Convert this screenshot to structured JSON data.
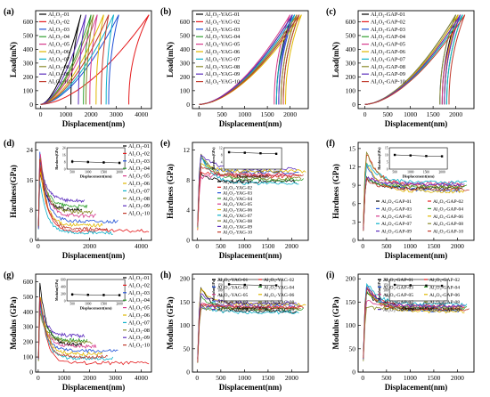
{
  "figure": {
    "colors": [
      "#000000",
      "#e41a1c",
      "#1f4fd6",
      "#2e9e2e",
      "#d63b8c",
      "#e0b800",
      "#0ab0c8",
      "#8a8a2a",
      "#5b2dbd",
      "#c0392b"
    ]
  },
  "chart_data": [
    {
      "type": "line",
      "panel_label": "(a)",
      "xlabel": "Displacement(nm)",
      "ylabel": "Load(mN)",
      "xlim": [
        -200,
        4400
      ],
      "ylim": [
        -30,
        680
      ],
      "xticks": [
        0,
        1000,
        2000,
        3000,
        4000
      ],
      "yticks": [
        0,
        100,
        200,
        300,
        400,
        500,
        600
      ],
      "legend_position": "top-left",
      "series": [
        {
          "name": "Al2O3-01",
          "label": "Al₂O₃-01",
          "load_max_x": 1600,
          "unload_end_x": 1200
        },
        {
          "name": "Al2O3-02",
          "label": "Al₂O₃-02",
          "load_max_x": 4300,
          "unload_end_x": 3500
        },
        {
          "name": "Al2O3-03",
          "label": "Al₂O₃-03",
          "load_max_x": 3100,
          "unload_end_x": 2700
        },
        {
          "name": "Al2O3-04",
          "label": "Al₂O₃-04",
          "load_max_x": 2000,
          "unload_end_x": 1700
        },
        {
          "name": "Al2O3-05",
          "label": "Al₂O₃-05",
          "load_max_x": 2250,
          "unload_end_x": 1950
        },
        {
          "name": "Al2O3-06",
          "label": "Al₂O₃-06",
          "load_max_x": 2500,
          "unload_end_x": 2200
        },
        {
          "name": "Al2O3-07",
          "label": "Al₂O₃-07",
          "load_max_x": 2900,
          "unload_end_x": 2600
        },
        {
          "name": "Al2O3-08",
          "label": "Al₂O₃-08",
          "load_max_x": 2100,
          "unload_end_x": 1800
        },
        {
          "name": "Al2O3-09",
          "label": "Al₂O₃-09",
          "load_max_x": 1800,
          "unload_end_x": 1500
        },
        {
          "name": "Al2O3-10",
          "label": "Al₂O₃-10",
          "load_max_x": 2700,
          "unload_end_x": 2400
        }
      ],
      "max_load": 650
    },
    {
      "type": "line",
      "panel_label": "(b)",
      "xlabel": "Displacement(nm)",
      "ylabel": "Load(mN)",
      "xlim": [
        -150,
        2400
      ],
      "ylim": [
        -30,
        680
      ],
      "xticks": [
        0,
        500,
        1000,
        1500,
        2000
      ],
      "yticks": [
        0,
        100,
        200,
        300,
        400,
        500,
        600
      ],
      "legend_position": "top-left",
      "series": [
        {
          "name": "Al2O3-YAG-01",
          "label": "Al₂O₃-YAG-01",
          "load_max_x": 2050,
          "unload_end_x": 1700
        },
        {
          "name": "Al2O3-YAG-02",
          "label": "Al₂O₃-YAG-02",
          "load_max_x": 2150,
          "unload_end_x": 1800
        },
        {
          "name": "Al2O3-YAG-03",
          "label": "Al₂O₃-YAG-03",
          "load_max_x": 2100,
          "unload_end_x": 1750
        },
        {
          "name": "Al2O3-YAG-04",
          "label": "Al₂O₃-YAG-04",
          "load_max_x": 2200,
          "unload_end_x": 1850
        },
        {
          "name": "Al2O3-YAG-05",
          "label": "Al₂O₃-YAG-05",
          "load_max_x": 2000,
          "unload_end_x": 1650
        },
        {
          "name": "Al2O3-YAG-06",
          "label": "Al₂O₃-YAG-06",
          "load_max_x": 2250,
          "unload_end_x": 1900
        },
        {
          "name": "Al2O3-YAG-07",
          "label": "Al₂O₃-YAG-07",
          "load_max_x": 2100,
          "unload_end_x": 1700
        },
        {
          "name": "Al2O3-YAG-08",
          "label": "Al₂O₃-YAG-08",
          "load_max_x": 2150,
          "unload_end_x": 1800
        },
        {
          "name": "Al2O3-YAG-09",
          "label": "Al₂O₃-YAG-09",
          "load_max_x": 2050,
          "unload_end_x": 1750
        },
        {
          "name": "Al2O3-YAG-10",
          "label": "Al₂O₃-YAG-10",
          "load_max_x": 2200,
          "unload_end_x": 1850
        }
      ],
      "max_load": 650
    },
    {
      "type": "line",
      "panel_label": "(c)",
      "xlabel": "Displacement(nm)",
      "ylabel": "Load(mN)",
      "xlim": [
        -150,
        2400
      ],
      "ylim": [
        -30,
        680
      ],
      "xticks": [
        0,
        500,
        1000,
        1500,
        2000
      ],
      "yticks": [
        0,
        100,
        200,
        300,
        400,
        500,
        600
      ],
      "legend_position": "top-left",
      "series": [
        {
          "name": "Al2O3-GAP-01",
          "label": "Al₂O₃-GAP-01",
          "load_max_x": 2050,
          "unload_end_x": 1700
        },
        {
          "name": "Al2O3-GAP-02",
          "label": "Al₂O₃-GAP-02",
          "load_max_x": 2100,
          "unload_end_x": 1750
        },
        {
          "name": "Al2O3-GAP-03",
          "label": "Al₂O₃-GAP-03",
          "load_max_x": 2000,
          "unload_end_x": 1650
        },
        {
          "name": "Al2O3-GAP-04",
          "label": "Al₂O₃-GAP-04",
          "load_max_x": 2150,
          "unload_end_x": 1800
        },
        {
          "name": "Al2O3-GAP-05",
          "label": "Al₂O₃-GAP-05",
          "load_max_x": 2100,
          "unload_end_x": 1700
        },
        {
          "name": "Al2O3-GAP-06",
          "label": "Al₂O₃-GAP-06",
          "load_max_x": 2050,
          "unload_end_x": 1750
        },
        {
          "name": "Al2O3-GAP-07",
          "label": "Al₂O₃-GAP-07",
          "load_max_x": 2150,
          "unload_end_x": 1800
        },
        {
          "name": "Al2O3-GAP-08",
          "label": "Al₂O₃-GAP-08",
          "load_max_x": 2000,
          "unload_end_x": 1650
        },
        {
          "name": "Al2O3-GAP-09",
          "label": "Al₂O₃-GAP-09",
          "load_max_x": 2100,
          "unload_end_x": 1750
        },
        {
          "name": "Al2O3-GAP-10",
          "label": "Al₂O₃-GAP-10",
          "load_max_x": 2200,
          "unload_end_x": 1850
        }
      ],
      "max_load": 650
    },
    {
      "type": "line",
      "panel_label": "(d)",
      "xlabel": "Displacement(nm)",
      "ylabel": "Hardness(GPa)",
      "xlim": [
        -100,
        4400
      ],
      "ylim": [
        0,
        26
      ],
      "xticks": [
        0,
        2000,
        4000
      ],
      "yticks": [
        0,
        8,
        16,
        24
      ],
      "legend_position": "right",
      "legend_layout": "1col",
      "series_labels": [
        "Al₂O₃-01",
        "Al₂O₃-02",
        "Al₂O₃-03",
        "Al₂O₃-04",
        "Al₂O₃-05",
        "Al₂O₃-06",
        "Al₂O₃-07",
        "Al₂O₃-08",
        "Al₂O₃-09",
        "Al₂O₃-10"
      ],
      "series_end_x": [
        1700,
        4300,
        3100,
        1900,
        2250,
        2500,
        2900,
        2100,
        1800,
        2700
      ],
      "series_plateau": [
        8.0,
        2.5,
        5.0,
        9.0,
        6.5,
        4.0,
        2.0,
        7.5,
        10.5,
        3.0
      ],
      "inset": {
        "ylabel": "Hardness(GPa)",
        "xlabel": "Displacement(nm)",
        "ylim": [
          0,
          24
        ],
        "yticks": [
          0,
          8,
          16,
          24
        ],
        "xticks": [
          500,
          1000,
          1500,
          2000
        ],
        "points": [
          [
            500,
            8.5
          ],
          [
            1000,
            8.0
          ],
          [
            1500,
            7.5
          ],
          [
            2000,
            7.0
          ]
        ],
        "errors": [
          2.0,
          1.5,
          1.5,
          1.5
        ]
      }
    },
    {
      "type": "line",
      "panel_label": "(e)",
      "xlabel": "Displacement(nm)",
      "ylabel": "Hardness (GPa)",
      "xlim": [
        -100,
        2350
      ],
      "ylim": [
        0,
        13
      ],
      "xticks": [
        0,
        500,
        1000,
        1500,
        2000
      ],
      "yticks": [
        0,
        4,
        8,
        12
      ],
      "legend_position": "left",
      "legend_layout": "1col",
      "series_labels": [
        "Al₂O₃-YAG-01",
        "Al₂O₃-YAG-02",
        "Al₂O₃-YAG-03",
        "Al₂O₃-YAG-04",
        "Al₂O₃-YAG-05",
        "Al₂O₃-YAG-06",
        "Al₂O₃-YAG-07",
        "Al₂O₃-YAG-08",
        "Al₂O₃-YAG-09",
        "Al₂O₃-YAG-10"
      ],
      "series_end_x": [
        2100,
        2200,
        2150,
        2250,
        2050,
        2300,
        2150,
        2200,
        2100,
        2250
      ],
      "series_plateau": [
        7.8,
        8.5,
        9.0,
        8.0,
        8.8,
        9.2,
        7.5,
        8.2,
        9.5,
        8.6
      ],
      "inset": {
        "ylabel": "Hardness(GPa)",
        "xlabel": "Displacement(nm)",
        "ylim": [
          0,
          12
        ],
        "yticks": [
          0,
          4,
          8,
          12
        ],
        "xticks": [
          500,
          1000,
          1500,
          2000
        ],
        "points": [
          [
            500,
            9.5
          ],
          [
            1000,
            9.2
          ],
          [
            1500,
            8.9
          ],
          [
            2000,
            8.6
          ]
        ],
        "errors": [
          0.6,
          0.5,
          0.5,
          0.5
        ]
      }
    },
    {
      "type": "line",
      "panel_label": "(f)",
      "xlabel": "Displacement(nm)",
      "ylabel": "Hardness (GPa)",
      "xlim": [
        -100,
        2350
      ],
      "ylim": [
        0,
        16
      ],
      "xticks": [
        0,
        500,
        1000,
        1500,
        2000
      ],
      "yticks": [
        0,
        3,
        6,
        9,
        12,
        15
      ],
      "legend_position": "bottom",
      "legend_layout": "2col",
      "series_labels": [
        "Al₂O₃-GAP-01",
        "Al₂O₃-GAP-02",
        "Al₂O₃-GAP-03",
        "Al₂O₃-GAP-04",
        "Al₂O₃-GAP-05",
        "Al₂O₃-GAP-06",
        "Al₂O₃-GAP-07",
        "Al₂O₃-GAP-08",
        "Al₂O₃-GAP-09",
        "Al₂O₃-GAP-10"
      ],
      "series_end_x": [
        2100,
        2150,
        2050,
        2200,
        2100,
        2150,
        2200,
        2050,
        2150,
        2250
      ],
      "series_plateau": [
        8.5,
        9.0,
        8.2,
        8.8,
        9.3,
        8.0,
        9.5,
        8.7,
        9.1,
        8.4
      ],
      "inset": {
        "ylabel": "Hardness(GPa)",
        "xlabel": "Displacement(nm)",
        "ylim": [
          0,
          15
        ],
        "yticks": [
          0,
          5,
          10,
          15
        ],
        "xticks": [
          500,
          1000,
          1500,
          2000
        ],
        "points": [
          [
            500,
            10.0
          ],
          [
            1000,
            9.6
          ],
          [
            1500,
            9.2
          ],
          [
            2000,
            9.0
          ]
        ],
        "errors": [
          0.5,
          0.4,
          0.4,
          0.4
        ]
      }
    },
    {
      "type": "line",
      "panel_label": "(g)",
      "xlabel": "Displacement(nm)",
      "ylabel": "Modulus (GPa)",
      "xlim": [
        -100,
        4400
      ],
      "ylim": [
        0,
        650
      ],
      "xticks": [
        0,
        1000,
        2000,
        3000,
        4000
      ],
      "yticks": [
        0,
        100,
        200,
        300,
        400,
        500,
        600
      ],
      "legend_position": "right",
      "legend_layout": "1col",
      "series_labels": [
        "Al₂O₃-01",
        "Al₂O₃-02",
        "Al₂O₃-03",
        "Al₂O₃-04",
        "Al₂O₃-05",
        "Al₂O₃-06",
        "Al₂O₃-07",
        "Al₂O₃-08",
        "Al₂O₃-09",
        "Al₂O₃-10"
      ],
      "series_end_x": [
        1700,
        4300,
        3100,
        1900,
        2250,
        2500,
        2900,
        2100,
        1800,
        2700
      ],
      "series_plateau": [
        180,
        60,
        140,
        210,
        170,
        120,
        90,
        200,
        240,
        100
      ],
      "inset": {
        "ylabel": "Modulus(GPa)",
        "xlabel": "Displacement(nm)",
        "ylim": [
          0,
          600
        ],
        "yticks": [
          0,
          200,
          400,
          600
        ],
        "xticks": [
          500,
          1000,
          1500,
          2000
        ],
        "points": [
          [
            500,
            180
          ],
          [
            1000,
            170
          ],
          [
            1500,
            165
          ],
          [
            2000,
            160
          ]
        ],
        "errors": [
          40,
          35,
          35,
          35
        ]
      }
    },
    {
      "type": "line",
      "panel_label": "(h)",
      "xlabel": "Displacement(nm)",
      "ylabel": "Modulus (GPa)",
      "xlim": [
        -100,
        2350
      ],
      "ylim": [
        0,
        210
      ],
      "xticks": [
        0,
        500,
        1000,
        1500,
        2000
      ],
      "yticks": [
        0,
        50,
        100,
        150,
        200
      ],
      "legend_position": "top",
      "legend_layout": "2col",
      "series_labels": [
        "Al₂O₃-YAG-01",
        "Al₂O₃-YAG-02",
        "Al₂O₃-YAG-03",
        "Al₂O₃-YAG-04",
        "Al₂O₃-YAG-05",
        "Al₂O₃-YAG-06",
        "Al₂O₃-YAG-07",
        "Al₂O₃-YAG-08",
        "Al₂O₃-YAG-09",
        "Al₂O₃-YAG-10"
      ],
      "series_end_x": [
        2100,
        2200,
        2150,
        2250,
        2050,
        2300,
        2150,
        2200,
        2100,
        2250
      ],
      "series_plateau": [
        130,
        138,
        142,
        135,
        140,
        145,
        128,
        136,
        148,
        139
      ],
      "inset": {
        "ylabel": "Modulus(GPa)",
        "xlabel": "Displacement(nm)",
        "ylim": [
          0,
          200
        ],
        "yticks": [
          0,
          50,
          100,
          150,
          200
        ],
        "xticks": [
          500,
          1000,
          1500,
          2000
        ],
        "points": [
          [
            500,
            155
          ],
          [
            1000,
            150
          ],
          [
            1500,
            147
          ],
          [
            2000,
            145
          ]
        ],
        "errors": [
          6,
          5,
          5,
          5
        ]
      }
    },
    {
      "type": "line",
      "panel_label": "(i)",
      "xlabel": "Displacement(nm)",
      "ylabel": "Modulus (GPa)",
      "xlim": [
        -100,
        2350
      ],
      "ylim": [
        0,
        210
      ],
      "xticks": [
        0,
        500,
        1000,
        1500,
        2000
      ],
      "yticks": [
        0,
        50,
        100,
        150,
        200
      ],
      "legend_position": "top",
      "legend_layout": "2col",
      "series_labels": [
        "Al₂O₃-GAP-01",
        "Al₂O₃-GAP-02",
        "Al₂O₃-GAP-03",
        "Al₂O₃-GAP-04",
        "Al₂O₃-GAP-05",
        "Al₂O₃-GAP-06",
        "Al₂O₃-GAP-07",
        "Al₂O₃-GAP-08",
        "Al₂O₃-GAP-09",
        "Al₂O₃-GAP-10"
      ],
      "series_end_x": [
        2100,
        2150,
        2050,
        2200,
        2100,
        2150,
        2200,
        2050,
        2150,
        2250
      ],
      "series_plateau": [
        135,
        140,
        132,
        138,
        142,
        130,
        145,
        137,
        141,
        134
      ],
      "inset": {
        "ylabel": "Modulus(GPa)",
        "xlabel": "Displacement(nm)",
        "ylim": [
          0,
          200
        ],
        "yticks": [
          0,
          50,
          100,
          150,
          200
        ],
        "xticks": [
          500,
          1000,
          1500,
          2000
        ],
        "points": [
          [
            500,
            150
          ],
          [
            1000,
            146
          ],
          [
            1500,
            143
          ],
          [
            2000,
            141
          ]
        ],
        "errors": [
          5,
          4,
          4,
          4
        ]
      }
    }
  ]
}
